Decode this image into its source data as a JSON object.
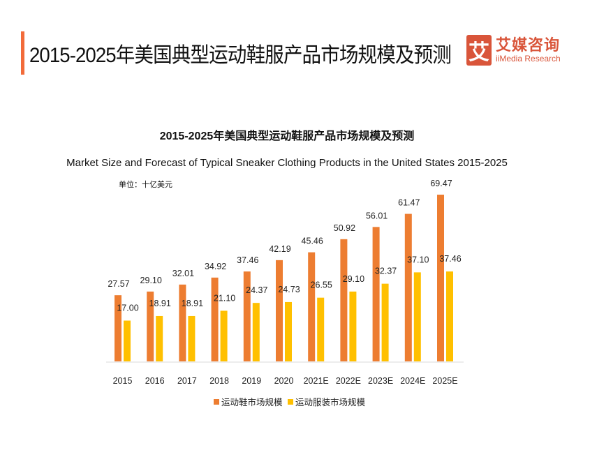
{
  "header": {
    "title": "2015-2025年美国典型运动鞋服产品市场规模及预测",
    "logo_mark": "艾",
    "logo_cn": "艾媒咨询",
    "logo_en": "iiMedia Research"
  },
  "colors": {
    "accent": "#f26b3a",
    "logo": "#d9553a",
    "series_shoes": "#ed7d31",
    "series_apparel": "#ffc000"
  },
  "chart_data": {
    "type": "bar",
    "title": "2015-2025年美国典型运动鞋服产品市场规模及预测",
    "subtitle": "Market Size and Forecast of Typical Sneaker Clothing Products in the United States 2015-2025",
    "unit_label": "单位：十亿美元",
    "xlabel": "",
    "ylabel": "",
    "ylim": [
      0,
      70
    ],
    "grid": false,
    "legend_position": "bottom",
    "categories": [
      "2015",
      "2016",
      "2017",
      "2018",
      "2019",
      "2020",
      "2021E",
      "2022E",
      "2023E",
      "2024E",
      "2025E"
    ],
    "series": [
      {
        "name": "运动鞋市场规模",
        "color": "#ed7d31",
        "values": [
          27.57,
          29.1,
          32.01,
          34.92,
          37.46,
          42.19,
          45.46,
          50.92,
          56.01,
          61.47,
          69.47
        ],
        "labels": [
          "27.57",
          "29.10",
          "32.01",
          "34.92",
          "37.46",
          "42.19",
          "45.46",
          "50.92",
          "56.01",
          "61.47",
          "69.47"
        ]
      },
      {
        "name": "运动服装市场规模",
        "color": "#ffc000",
        "values": [
          17.0,
          18.91,
          18.91,
          21.1,
          24.37,
          24.73,
          26.55,
          29.1,
          32.37,
          37.1,
          37.46
        ],
        "labels": [
          "17.00",
          "18.91",
          "18.91",
          "21.10",
          "24.37",
          "24.73",
          "26.55",
          "29.10",
          "32.37",
          "37.10",
          "37.46"
        ]
      }
    ]
  }
}
